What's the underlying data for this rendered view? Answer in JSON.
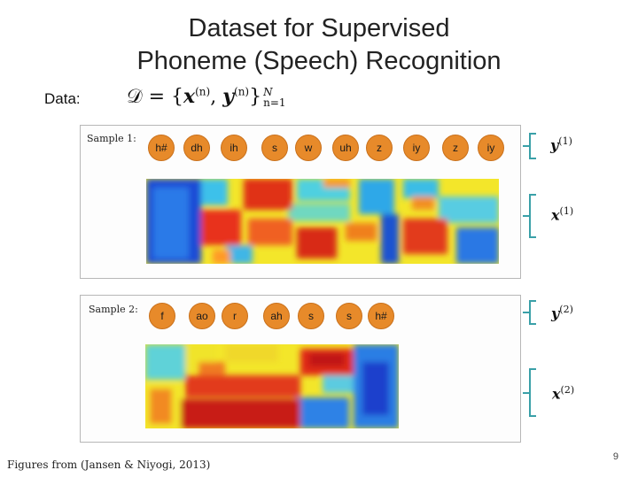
{
  "title": {
    "line1": "Dataset for Supervised",
    "line2": "Phoneme (Speech) Recognition"
  },
  "data_label": "Data:",
  "formula": {
    "D": "𝒟",
    "equals": "=",
    "open": "{",
    "x": "x",
    "n_sup": "(n)",
    "comma": ",",
    "y": "y",
    "close": "}",
    "upper": "N",
    "lower": "n=1"
  },
  "samples": [
    {
      "label": "Sample 1:",
      "phonemes": [
        "h#",
        "dh",
        "ih",
        "s",
        "w",
        "uh",
        "z",
        "iy",
        "z",
        "iy"
      ],
      "y_label": "y",
      "y_sup": "(1)",
      "x_label": "x",
      "x_sup": "(1)"
    },
    {
      "label": "Sample 2:",
      "phonemes": [
        "f",
        "ao",
        "r",
        "ah",
        "s",
        "s",
        "h#"
      ],
      "y_label": "y",
      "y_sup": "(2)",
      "x_label": "x",
      "x_sup": "(2)"
    }
  ],
  "footer": "Figures from (Jansen & Niyogi, 2013)",
  "page_number": "9",
  "colors": {
    "phoneme_fill": "#e78a2a",
    "bracket": "#3aa0a8",
    "panel_border": "#b7b7b7"
  }
}
